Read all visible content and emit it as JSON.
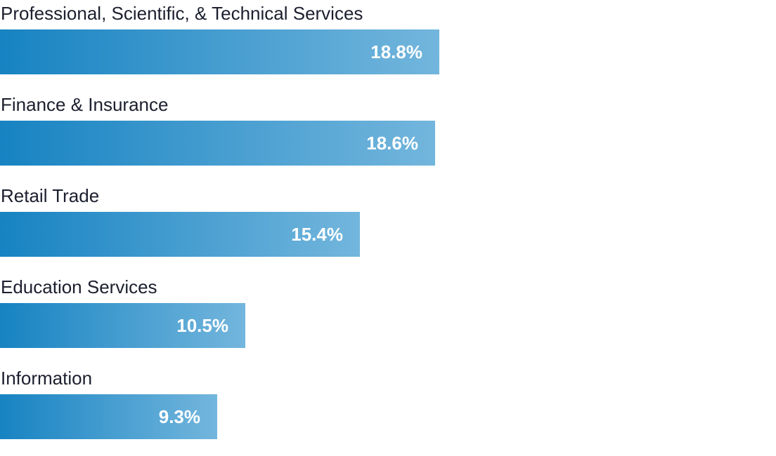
{
  "chart_data": {
    "type": "bar",
    "orientation": "horizontal",
    "categories": [
      "Professional, Scientific, & Technical Services",
      "Finance & Insurance",
      "Retail Trade",
      "Education Services",
      "Information"
    ],
    "values": [
      18.8,
      18.6,
      15.4,
      10.5,
      9.3
    ],
    "value_labels": [
      "18.8%",
      "18.6%",
      "15.4%",
      "10.5%",
      "9.3%"
    ],
    "unit": "%",
    "xlim": [
      0,
      33.2
    ],
    "grid": false,
    "legend": "none",
    "colors": {
      "bar_start": "#1783c2",
      "bar_end": "#73b6dd",
      "label": "#1c1f2e",
      "value_text": "#ffffff"
    }
  }
}
